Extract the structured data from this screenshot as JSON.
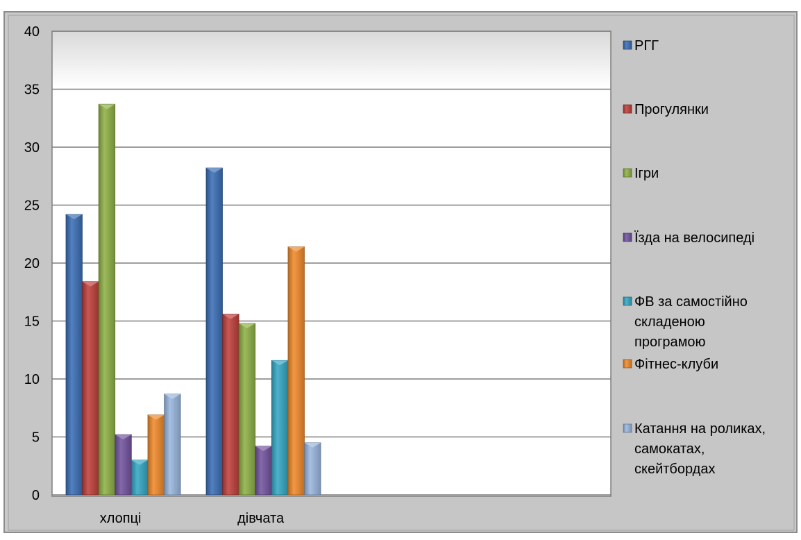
{
  "chart_data": {
    "type": "bar",
    "categories": [
      "хлопці",
      "дівчата"
    ],
    "series": [
      {
        "name": "РГГ",
        "values": [
          24.2,
          28.2
        ],
        "color": "#3b6fb6"
      },
      {
        "name": "Прогулянки",
        "values": [
          18.4,
          15.6
        ],
        "color": "#c0403b"
      },
      {
        "name": "Ігри",
        "values": [
          33.7,
          14.8
        ],
        "color": "#8fb146"
      },
      {
        "name": "Їзда на велосипеді",
        "values": [
          5.2,
          4.2
        ],
        "color": "#7354a0"
      },
      {
        "name": "ФВ за самостійно складеною програмою",
        "values": [
          3.0,
          11.6
        ],
        "color": "#35a8c4"
      },
      {
        "name": "Фітнес-клуби",
        "values": [
          6.9,
          21.4
        ],
        "color": "#f08a2a"
      },
      {
        "name": "Катання на роликах, самокатах, скейтбордах",
        "values": [
          8.7,
          4.5
        ],
        "color": "#9ab7df"
      }
    ],
    "yticks": [
      0,
      5,
      10,
      15,
      20,
      25,
      30,
      35,
      40
    ],
    "ylim": [
      0,
      40
    ],
    "grid": true,
    "legend_position": "right",
    "legend_lines": [
      [
        "РГГ"
      ],
      [
        "Прогулянки"
      ],
      [
        "Ігри"
      ],
      [
        "Їзда на велосипеді"
      ],
      [
        "ФВ за самостійно",
        "складеною",
        "програмою"
      ],
      [
        "Фітнес-клуби"
      ],
      [
        "Катання на роликах,",
        "самокатах,",
        "скейтбордах"
      ]
    ]
  }
}
